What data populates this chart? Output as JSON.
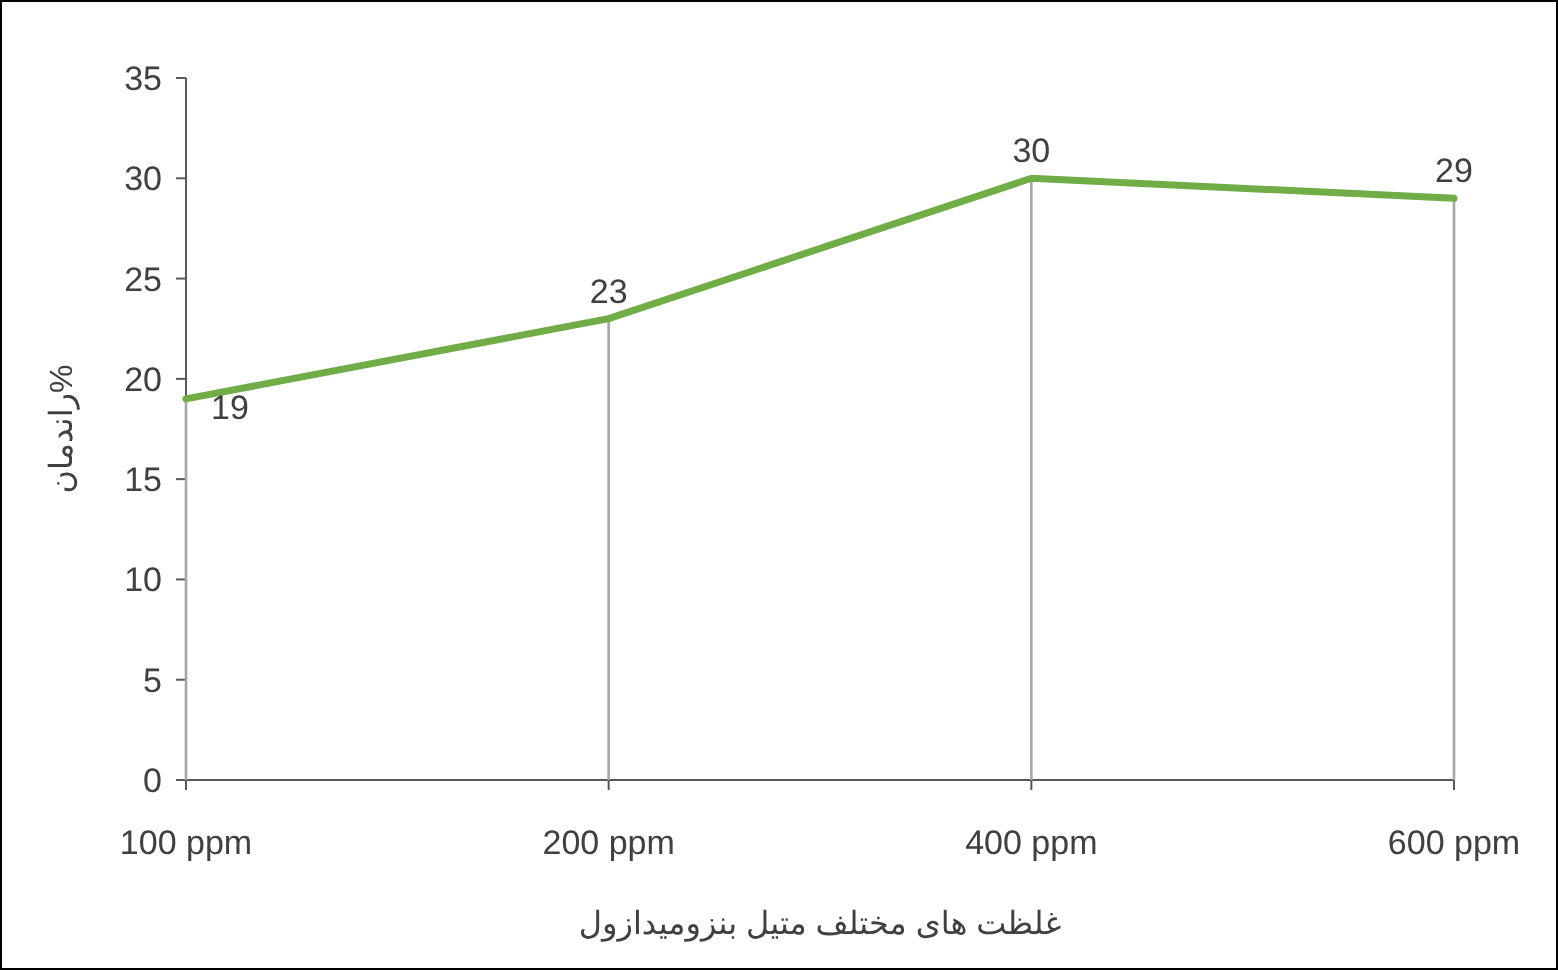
{
  "chart_data": {
    "type": "line",
    "xlabel": "غلظت های مختلف متیل بنزومیدازول",
    "ylabel": "راندمان%",
    "categories": [
      "100 ppm",
      "200 ppm",
      "400 ppm",
      "600 ppm"
    ],
    "series": [
      {
        "color": "#70ad47",
        "values": [
          19,
          23,
          30,
          29
        ]
      }
    ],
    "ylim": [
      0,
      35
    ],
    "yticks": [
      0,
      5,
      10,
      15,
      20,
      25,
      30,
      35
    ],
    "grid": "x",
    "marker": "none",
    "line_style": "solid",
    "data_labels": true
  }
}
